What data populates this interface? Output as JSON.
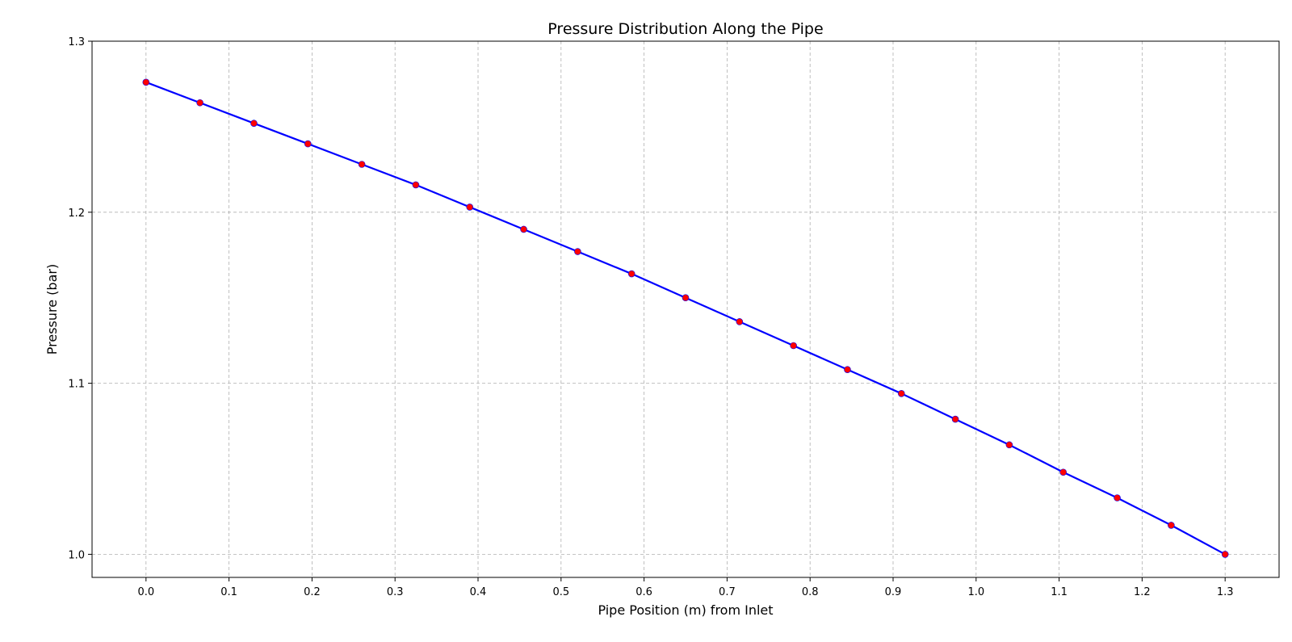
{
  "chart_data": {
    "type": "line",
    "title": "Pressure Distribution Along the Pipe",
    "xlabel": "Pipe Position (m) from Inlet",
    "ylabel": "Pressure (bar)",
    "xlim": [
      -0.065,
      1.365
    ],
    "ylim": [
      0.9865,
      1.3
    ],
    "xticks": [
      "0.0",
      "0.1",
      "0.2",
      "0.3",
      "0.4",
      "0.5",
      "0.6",
      "0.7",
      "0.8",
      "0.9",
      "1.0",
      "1.1",
      "1.2",
      "1.3"
    ],
    "yticks": [
      "1.0",
      "1.1",
      "1.2",
      "1.3"
    ],
    "grid": true,
    "grid_style": "dashed",
    "line_color": "#0000ff",
    "marker_color": "#ff0000",
    "series": [
      {
        "x": [
          0.0,
          0.065,
          0.13,
          0.195,
          0.26,
          0.325,
          0.39,
          0.455,
          0.52,
          0.585,
          0.65,
          0.715,
          0.78,
          0.845,
          0.91,
          0.975,
          1.04,
          1.105,
          1.17,
          1.235,
          1.3
        ],
        "y": [
          1.276,
          1.264,
          1.252,
          1.24,
          1.228,
          1.216,
          1.203,
          1.19,
          1.177,
          1.164,
          1.15,
          1.136,
          1.122,
          1.108,
          1.094,
          1.079,
          1.064,
          1.048,
          1.033,
          1.017,
          1.0
        ]
      }
    ]
  }
}
